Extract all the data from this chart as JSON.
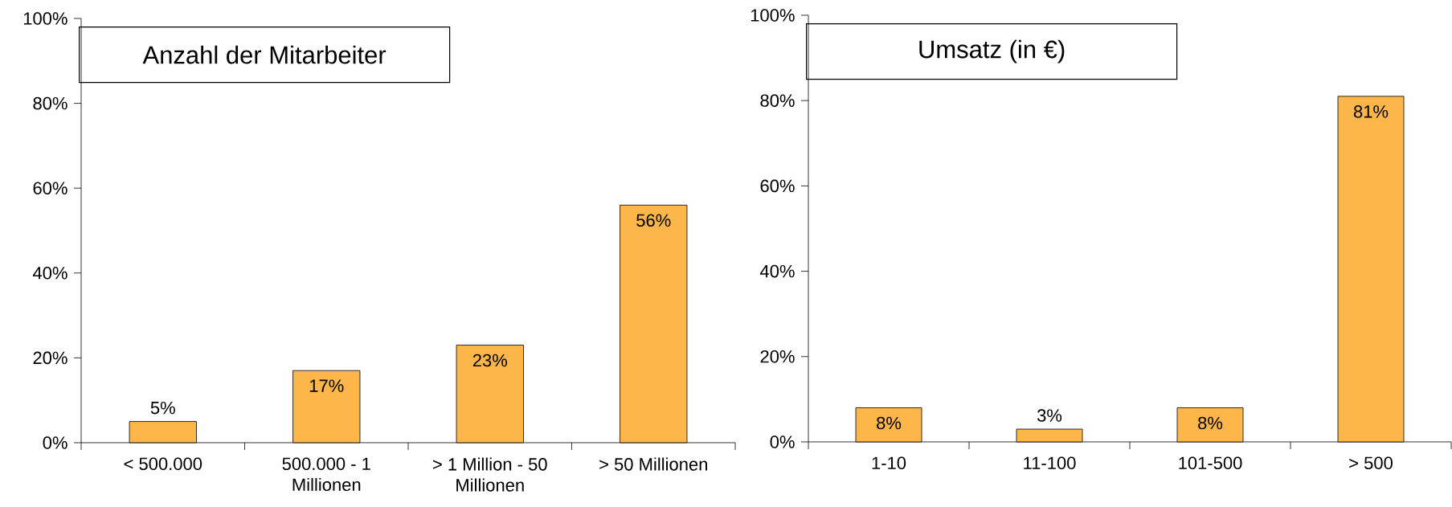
{
  "chart_data": [
    {
      "type": "bar",
      "title": "Anzahl der Mitarbeiter",
      "categories": [
        "< 500.000",
        "500.000 - 1 Millionen",
        "> 1 Million - 50 Millionen",
        "> 50 Millionen"
      ],
      "values": [
        5,
        17,
        23,
        56
      ],
      "value_labels": [
        "5%",
        "17%",
        "23%",
        "56%"
      ],
      "color": "#fdb64a",
      "ylim": [
        0,
        100
      ],
      "yticks": [
        {
          "value": 0,
          "label": "0%"
        },
        {
          "value": 20,
          "label": "20%"
        },
        {
          "value": 40,
          "label": "40%"
        },
        {
          "value": 60,
          "label": "60%"
        },
        {
          "value": 80,
          "label": "80%"
        },
        {
          "value": 100,
          "label": "100%"
        }
      ]
    },
    {
      "type": "bar",
      "title": "Umsatz (in €)",
      "categories": [
        "1-10",
        "11-100",
        "101-500",
        "> 500"
      ],
      "values": [
        8,
        3,
        8,
        81
      ],
      "value_labels": [
        "8%",
        "3%",
        "8%",
        "81%"
      ],
      "color": "#fdb64a",
      "ylim": [
        0,
        100
      ],
      "yticks": [
        {
          "value": 0,
          "label": "0%"
        },
        {
          "value": 20,
          "label": "20%"
        },
        {
          "value": 40,
          "label": "40%"
        },
        {
          "value": 60,
          "label": "60%"
        },
        {
          "value": 80,
          "label": "80%"
        },
        {
          "value": 100,
          "label": "100%"
        }
      ]
    }
  ]
}
